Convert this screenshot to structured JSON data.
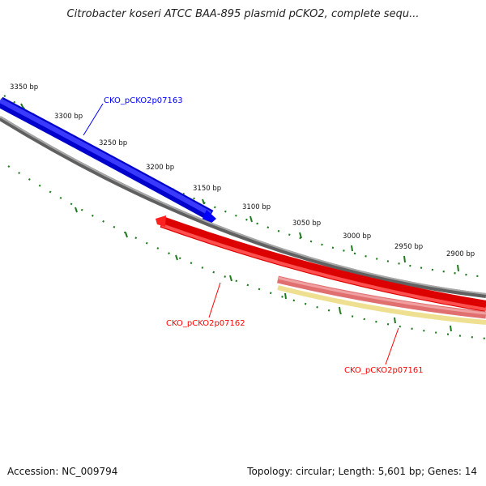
{
  "title": "Citrobacter koseri ATCC BAA-895 plasmid pCKO2, complete sequ...",
  "footer": {
    "accession": "Accession: NC_009794",
    "summary": "Topology: circular; Length: 5,601 bp; Genes: 14"
  },
  "tick_labels": [
    "3350 bp",
    "3300 bp",
    "3250 bp",
    "3200 bp",
    "3150 bp",
    "3100 bp",
    "3050 bp",
    "3000 bp",
    "2950 bp",
    "2900 bp"
  ],
  "genes": [
    {
      "label": "CKO_pCKO2p07163",
      "color": "#0000ff",
      "strand": "forward"
    },
    {
      "label": "CKO_pCKO2p07162",
      "color": "#ff0000",
      "strand": "reverse"
    },
    {
      "label": "CKO_pCKO2p07161",
      "color": "#ff0000",
      "strand": "reverse"
    }
  ],
  "colors": {
    "backbone": "#808080",
    "ticks": "#1e7a1e",
    "gene_forward": "#0000ff",
    "gene_reverse": "#ff0000",
    "gene_reverse_light": "#e88080",
    "gene_yellow": "#eee090"
  }
}
